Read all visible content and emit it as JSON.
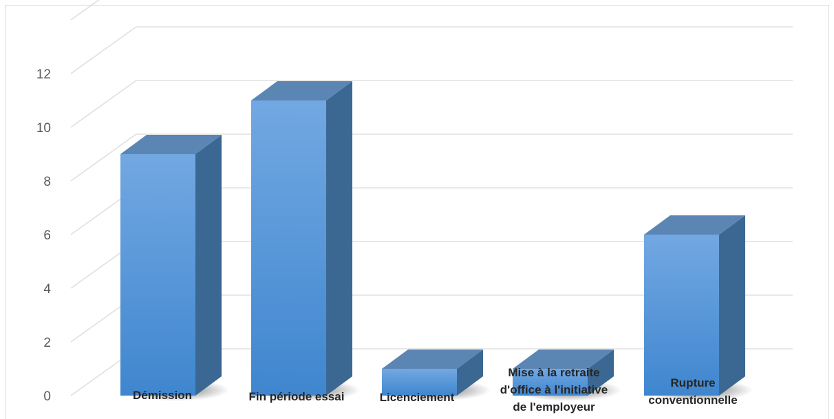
{
  "chart_data": {
    "type": "bar",
    "categories": [
      [
        "Démission"
      ],
      [
        "Fin période essai"
      ],
      [
        "Licenciement"
      ],
      [
        "Mise à la retraite",
        "d'office à l'initiative",
        "de l'employeur"
      ],
      [
        "Rupture",
        "conventionnelle"
      ]
    ],
    "values": [
      9,
      11,
      1,
      1,
      6
    ],
    "ylim": [
      0,
      12
    ],
    "yticks": [
      "0",
      "2",
      "4",
      "6",
      "8",
      "10",
      "12"
    ],
    "title": "",
    "xlabel": "",
    "ylabel": "",
    "grid": true,
    "style": "3d-column",
    "colors": {
      "bar_front_top": "#72a8e2",
      "bar_front_bottom": "#3f86cf",
      "bar_side": "#3b6893",
      "bar_top": "#5b86b4",
      "grid": "#d9d9d9",
      "tick_text": "#595959",
      "label_text": "#262626"
    }
  }
}
